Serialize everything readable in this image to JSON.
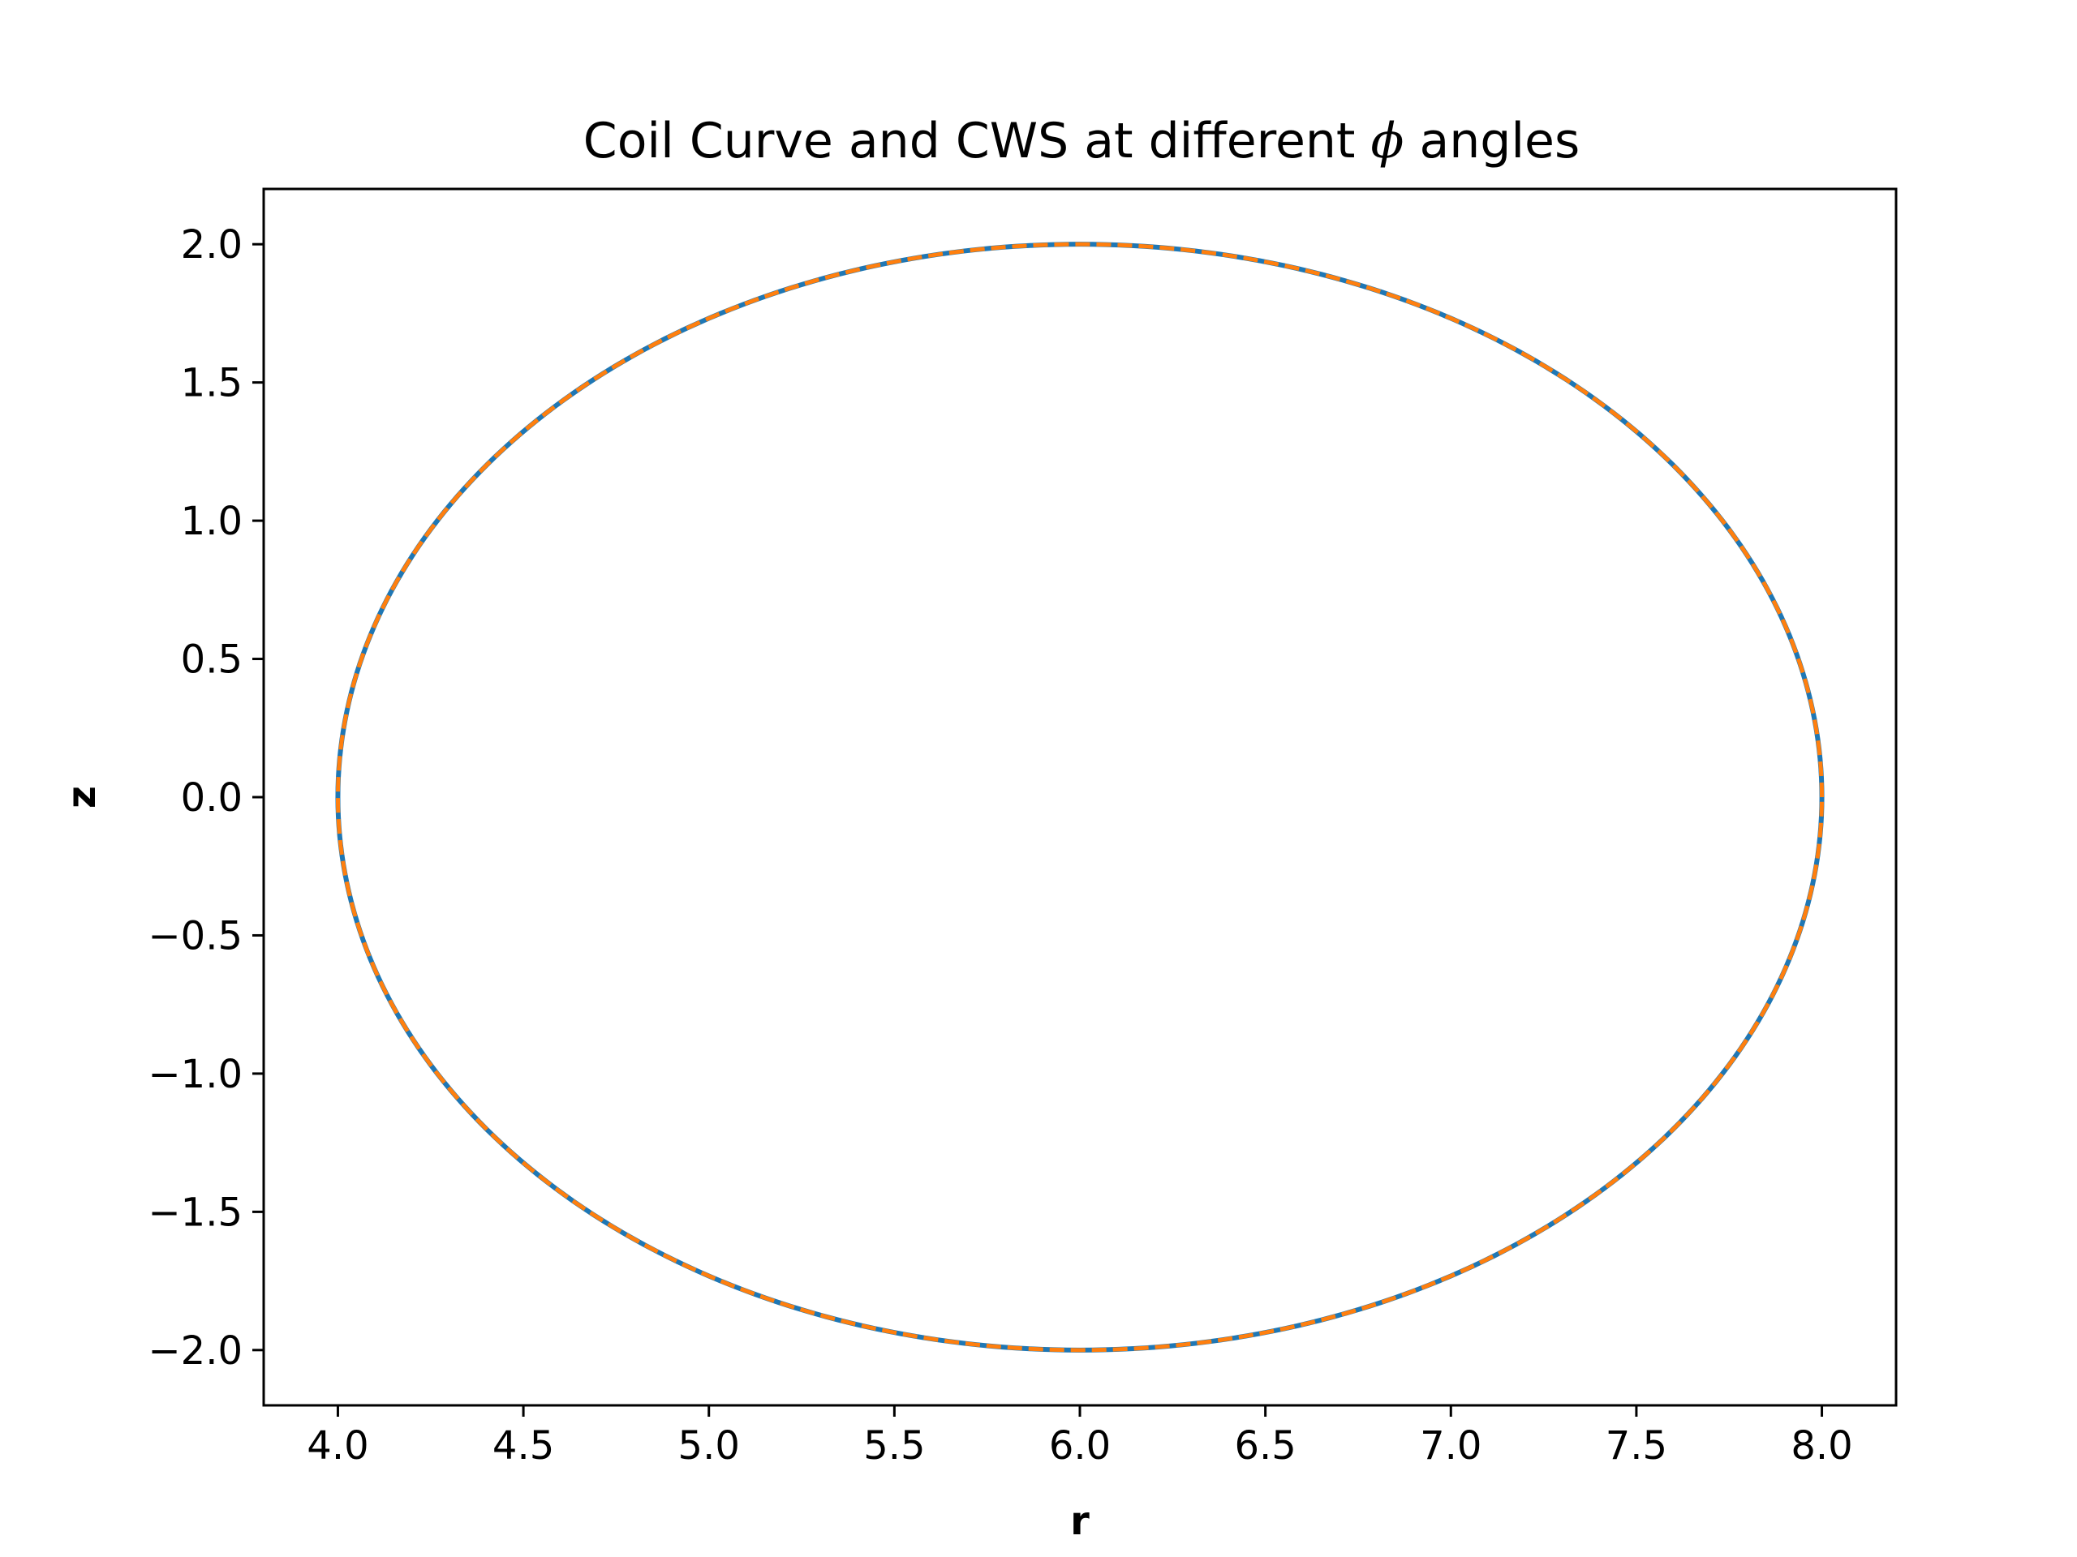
{
  "chart_data": {
    "type": "line",
    "title": "Coil Curve and CWS at different ",
    "title_symbol": "ϕ",
    "title_suffix": " angles",
    "xlabel": "r",
    "ylabel": "z",
    "xlim": [
      3.8,
      8.2
    ],
    "ylim": [
      -2.2,
      2.2
    ],
    "xticks": [
      4.0,
      4.5,
      5.0,
      5.5,
      6.0,
      6.5,
      7.0,
      7.5,
      8.0
    ],
    "xtick_labels": [
      "4.0",
      "4.5",
      "5.0",
      "5.5",
      "6.0",
      "6.5",
      "7.0",
      "7.5",
      "8.0"
    ],
    "yticks": [
      2.0,
      1.5,
      1.0,
      0.5,
      0.0,
      -0.5,
      -1.0,
      -1.5,
      -2.0
    ],
    "ytick_labels": [
      "2.0",
      "1.5",
      "1.0",
      "0.5",
      "0.0",
      "−0.5",
      "−1.0",
      "−1.5",
      "−2.0"
    ],
    "grid": false,
    "series": [
      {
        "color": "#1f77b4",
        "style": "solid",
        "shape": "ellipse",
        "center": [
          6.0,
          0.0
        ],
        "semi_axes": [
          2.0,
          2.0
        ],
        "x": [
          8.0,
          7.848,
          7.414,
          6.765,
          6.0,
          5.235,
          4.586,
          4.152,
          4.0,
          4.152,
          4.586,
          5.235,
          6.0,
          6.765,
          7.414,
          7.848,
          8.0
        ],
        "y": [
          0.0,
          0.765,
          1.414,
          1.848,
          2.0,
          1.848,
          1.414,
          0.765,
          0.0,
          -0.765,
          -1.414,
          -1.848,
          -2.0,
          -1.848,
          -1.414,
          -0.765,
          0.0
        ]
      },
      {
        "color": "#ff7f0e",
        "style": "dashed",
        "shape": "ellipse",
        "center": [
          6.0,
          0.0
        ],
        "semi_axes": [
          2.0,
          2.0
        ],
        "x": [
          8.0,
          7.848,
          7.414,
          6.765,
          6.0,
          5.235,
          4.586,
          4.152,
          4.0,
          4.152,
          4.586,
          5.235,
          6.0,
          6.765,
          7.414,
          7.848,
          8.0
        ],
        "y": [
          0.0,
          0.765,
          1.414,
          1.848,
          2.0,
          1.848,
          1.414,
          0.765,
          0.0,
          -0.765,
          -1.414,
          -1.848,
          -2.0,
          -1.848,
          -1.414,
          -0.765,
          0.0
        ]
      }
    ]
  }
}
